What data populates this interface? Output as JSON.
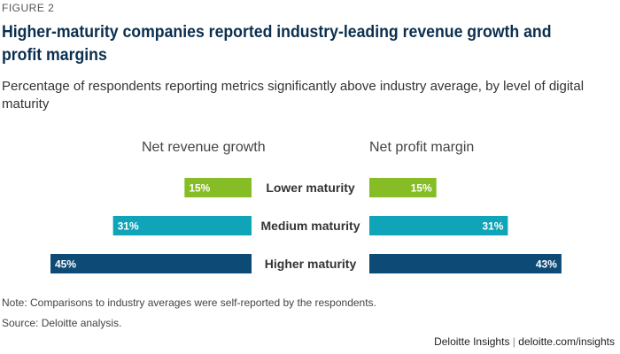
{
  "figure_label": "FIGURE 2",
  "chart_data": {
    "type": "bar",
    "title": "Higher-maturity companies reported industry-leading revenue growth and profit margins",
    "subtitle": "Percentage of respondents reporting metrics significantly above industry average, by level of digital maturity",
    "categories": [
      "Lower maturity",
      "Medium maturity",
      "Higher maturity"
    ],
    "series": [
      {
        "name": "Net revenue growth",
        "values": [
          15,
          31,
          45
        ],
        "labels": [
          "15%",
          "31%",
          "45%"
        ]
      },
      {
        "name": "Net profit margin",
        "values": [
          15,
          31,
          43
        ],
        "labels": [
          "15%",
          "31%",
          "43%"
        ]
      }
    ],
    "category_colors": [
      "#86bc25",
      "#0fa4b8",
      "#0d4a75"
    ],
    "xlim": [
      0,
      45
    ]
  },
  "note": "Note: Comparisons to industry averages were self-reported by the respondents.",
  "source": "Source: Deloitte analysis.",
  "footer": {
    "brand": "Deloitte Insights",
    "separator": "|",
    "url": "deloitte.com/insights"
  }
}
